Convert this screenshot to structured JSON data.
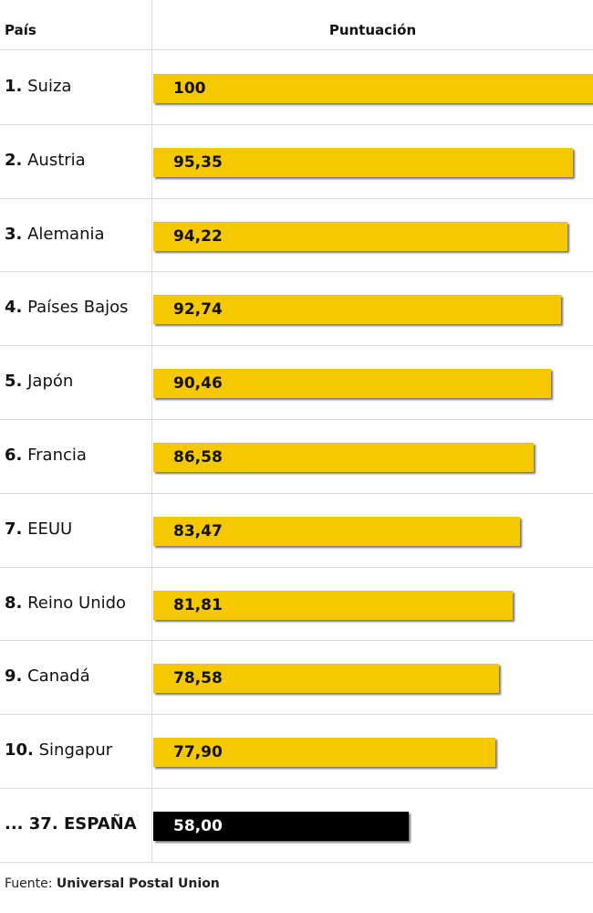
{
  "chart_data": {
    "type": "bar",
    "orientation": "horizontal",
    "columns": {
      "country": "País",
      "score": "Puntuación"
    },
    "rows": [
      {
        "rank": "1.",
        "country": "Suiza",
        "value": 100,
        "label": "100"
      },
      {
        "rank": "2.",
        "country": "Austria",
        "value": 95.35,
        "label": "95,35"
      },
      {
        "rank": "3.",
        "country": "Alemania",
        "value": 94.22,
        "label": "94,22"
      },
      {
        "rank": "4.",
        "country": "Países Bajos",
        "value": 92.74,
        "label": "92,74"
      },
      {
        "rank": "5.",
        "country": "Japón",
        "value": 90.46,
        "label": "90,46"
      },
      {
        "rank": "6.",
        "country": "Francia",
        "value": 86.58,
        "label": "86,58"
      },
      {
        "rank": "7.",
        "country": "EEUU",
        "value": 83.47,
        "label": "83,47"
      },
      {
        "rank": "8.",
        "country": "Reino Unido",
        "value": 81.81,
        "label": "81,81"
      },
      {
        "rank": "9.",
        "country": "Canadá",
        "value": 78.58,
        "label": "78,58"
      },
      {
        "rank": "10.",
        "country": "Singapur",
        "value": 77.9,
        "label": "77,90"
      },
      {
        "rank": "... 37.",
        "country": "ESPAÑA",
        "value": 58.0,
        "label": "58,00",
        "highlight": true
      }
    ],
    "xlim": [
      0,
      100
    ],
    "colors": {
      "bar": "#f5c800",
      "highlight": "#000000"
    }
  },
  "footer": {
    "prefix": "Fuente: ",
    "source": "Universal Postal Union"
  }
}
